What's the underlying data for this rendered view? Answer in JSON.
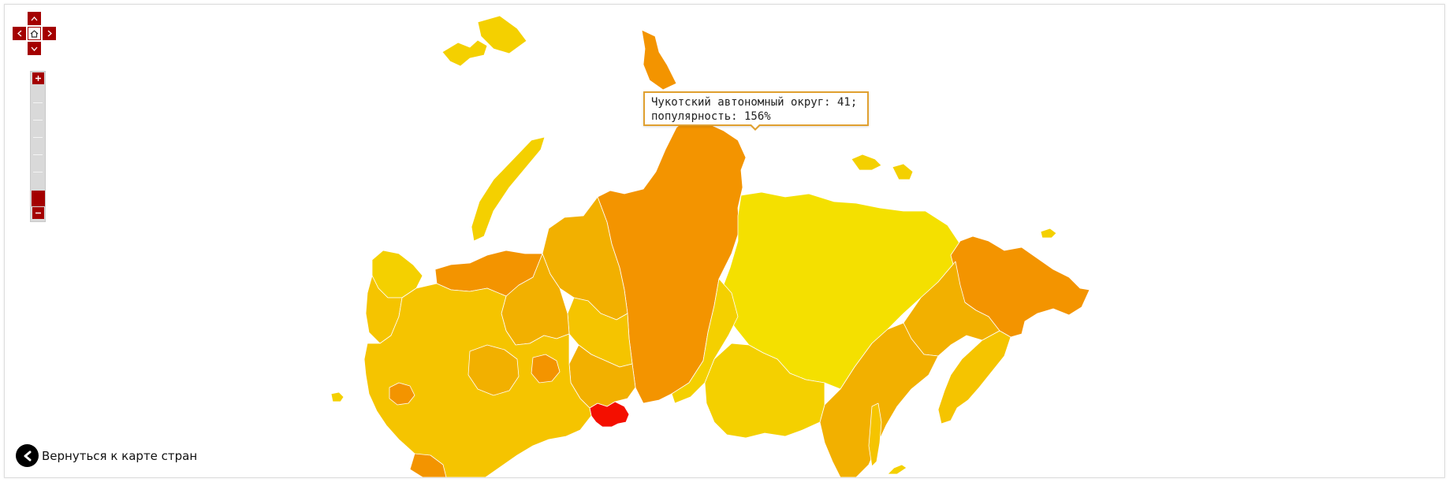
{
  "colors": {
    "accent": "#a40000",
    "scale_low": "#f4e000",
    "scale_mid": "#f5c400",
    "scale_midhigh": "#f2b000",
    "scale_high": "#f39400",
    "scale_max": "#f40f00",
    "tooltip_border": "#e0a030"
  },
  "nav": {
    "up_icon": "chevron-up-icon",
    "down_icon": "chevron-down-icon",
    "left_icon": "chevron-left-icon",
    "right_icon": "chevron-right-icon",
    "home_icon": "home-icon"
  },
  "zoom": {
    "in_label": "+",
    "out_label": "–",
    "level_fraction": 0.88
  },
  "tooltip": {
    "line1": "Чукотский автономный округ: 41;",
    "line2": "популярность: 156%"
  },
  "back_link": {
    "icon": "chevron-left-icon",
    "label": "Вернуться к карте стран"
  }
}
